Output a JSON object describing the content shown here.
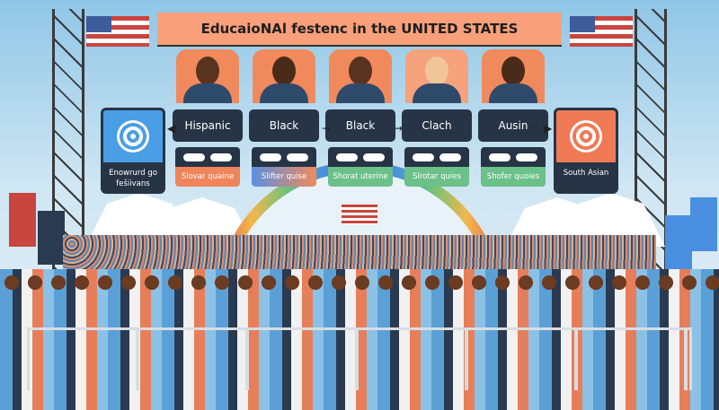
{
  "banner": {
    "title": "EducaioNAl festenc in the UNITED STATES"
  },
  "cards": [
    {
      "label": "Hispanic",
      "caption": "Slovar quaine",
      "caption_color": "#f0845a"
    },
    {
      "label": "Black",
      "caption": "Slifter quise",
      "caption_color": "#7a90d8"
    },
    {
      "label": "Black",
      "caption": "Shorat uterine",
      "caption_color": "#6cc08a"
    },
    {
      "label": "Clach",
      "caption": "Slrotar quies",
      "caption_color": "#6cc08a"
    },
    {
      "label": "Ausin",
      "caption": "Shofer quoies",
      "caption_color": "#6cc08a"
    }
  ],
  "left_card": {
    "text": "Enowrurd go fešiivans",
    "color": "#4a9ee6",
    "icon": "target-icon"
  },
  "right_card": {
    "text": "South Asian",
    "color": "#f07a55",
    "icon": "target-icon"
  }
}
